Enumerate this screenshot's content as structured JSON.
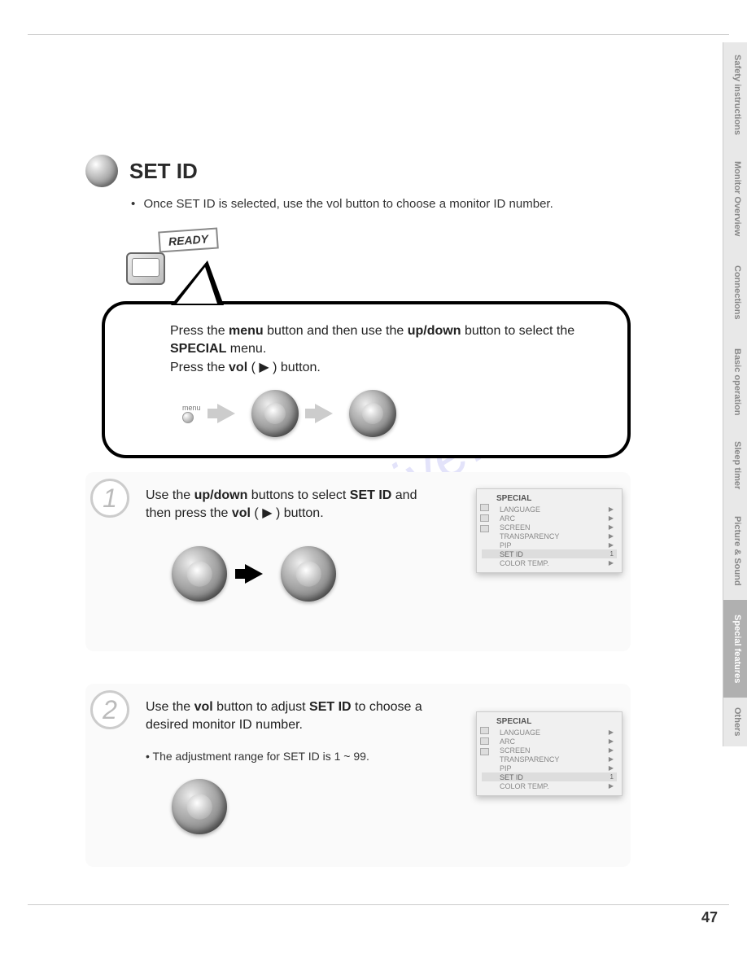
{
  "page": {
    "number": "47",
    "watermark": "manualchive.com"
  },
  "side_tabs": [
    {
      "label": "Safety instructions",
      "height": 130,
      "active": false
    },
    {
      "label": "Monitor Overview",
      "height": 125,
      "active": false
    },
    {
      "label": "Connections",
      "height": 105,
      "active": false
    },
    {
      "label": "Basic operation",
      "height": 115,
      "active": false
    },
    {
      "label": "Sleep timer",
      "height": 90,
      "active": false
    },
    {
      "label": "Picture & Sound",
      "height": 120,
      "active": false
    },
    {
      "label": "Special features",
      "height": 120,
      "active": true
    },
    {
      "label": "Others",
      "height": 60,
      "active": false
    }
  ],
  "header": {
    "title": "SET ID",
    "subtitle": "Once SET ID is selected, use the vol button to choose a monitor ID number."
  },
  "ready": {
    "banner": "READY",
    "line1_pre": "Press the ",
    "line1_b1": "menu",
    "line1_mid": " button and then use the ",
    "line1_b2": "up/down",
    "line1_post": " button to select the ",
    "line1_b3": "SPECIAL",
    "line1_end": " menu.",
    "line2_pre": "Press the ",
    "line2_b1": "vol",
    "line2_post": " ( ▶ ) button.",
    "menu_label": "menu"
  },
  "step1": {
    "number": "1",
    "text_pre": "Use the ",
    "text_b1": "up/down",
    "text_mid": " buttons to select ",
    "text_b2": "SET ID",
    "text_mid2": " and then press the ",
    "text_b3": "vol",
    "text_post": " ( ▶ ) button."
  },
  "step2": {
    "number": "2",
    "text_pre": "Use the ",
    "text_b1": "vol",
    "text_mid": " button to adjust ",
    "text_b2": "SET ID",
    "text_post": " to choose a desired monitor ID number.",
    "note_pre": "• The adjustment range for ",
    "note_b": "SET ID",
    "note_post": " is 1 ~ 99."
  },
  "osd": {
    "title": "SPECIAL",
    "items": [
      {
        "label": "LANGUAGE",
        "value": "▶"
      },
      {
        "label": "ARC",
        "value": "▶"
      },
      {
        "label": "SCREEN",
        "value": "▶"
      },
      {
        "label": "TRANSPARENCY",
        "value": "▶"
      },
      {
        "label": "PIP",
        "value": "▶"
      },
      {
        "label": "SET ID",
        "value": "1"
      },
      {
        "label": "COLOR TEMP.",
        "value": "▶"
      }
    ],
    "selected_index": 5
  },
  "colors": {
    "page_bg": "#ffffff",
    "text": "#333333",
    "border": "#cccccc",
    "tab_bg": "#e8e8e8",
    "tab_active_bg": "#b0b0b0",
    "tab_text": "#888888",
    "tab_active_text": "#ffffff",
    "step_bg": "#fafafa",
    "watermark": "rgba(100,100,230,0.18)"
  }
}
